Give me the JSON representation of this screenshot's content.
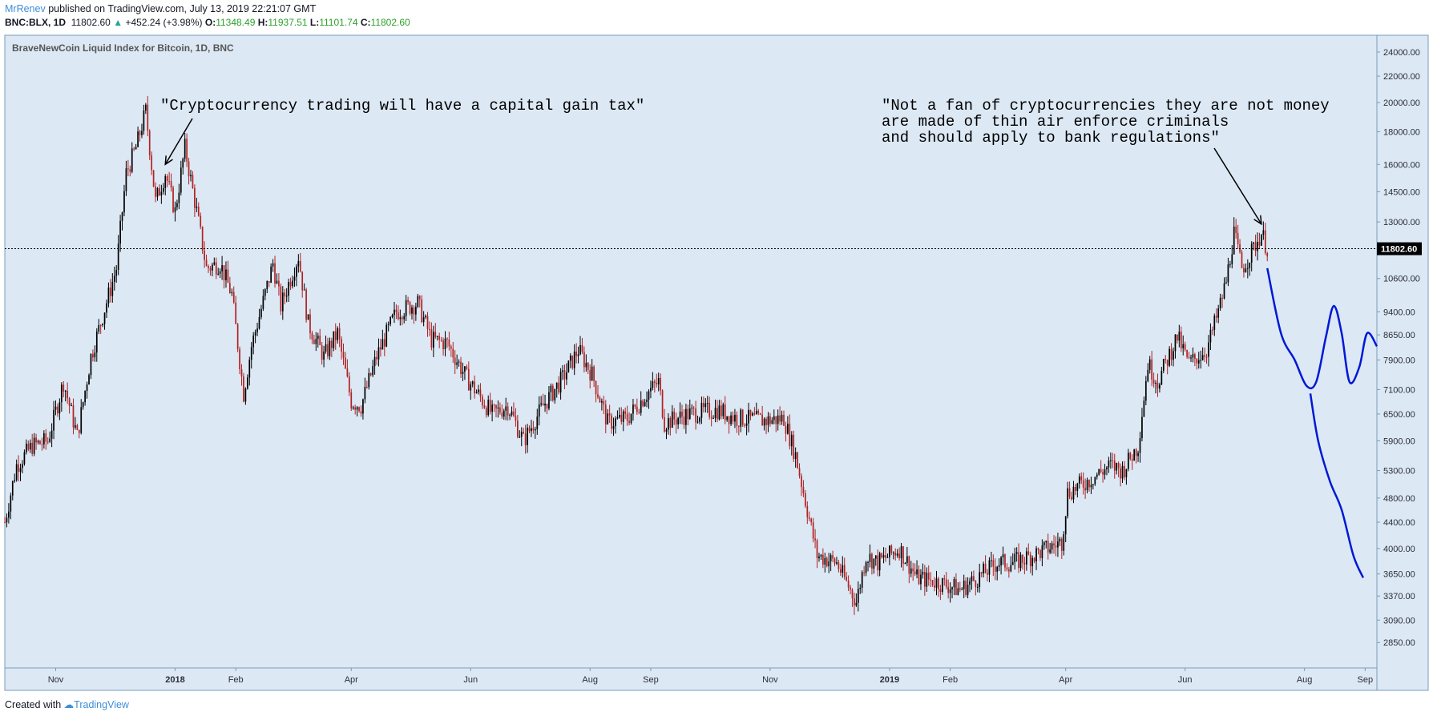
{
  "header": {
    "author": "MrRenev",
    "published": "published on TradingView.com, July 13, 2019 22:21:07 GMT",
    "symbol": "BNC:BLX, 1D",
    "last": "11802.60",
    "change": "+452.24 (+3.98%)",
    "o_label": "O:",
    "o_value": "11348.49",
    "h_label": "H:",
    "h_value": "11937.51",
    "l_label": "L:",
    "l_value": "11101.74",
    "c_label": "C:",
    "c_value": "11802.60"
  },
  "footer": {
    "created_with": "Created with",
    "brand": "TradingView"
  },
  "colors": {
    "background": "#dce8f4",
    "up_candle": "#000000",
    "down_candle": "#b22222",
    "projection": "#0018d6",
    "price_line": "#000000"
  },
  "chart_data": {
    "type": "candlestick",
    "title": "BraveNewCoin Liquid Index for Bitcoin, 1D, BNC",
    "y_scale": "log",
    "ylim": [
      2600,
      25500
    ],
    "y_ticks": [
      "24000.00",
      "22000.00",
      "20000.00",
      "18000.00",
      "16000.00",
      "14500.00",
      "13000.00",
      "11802.60",
      "10600.00",
      "9400.00",
      "8650.00",
      "7900.00",
      "7100.00",
      "6500.00",
      "5900.00",
      "5300.00",
      "4800.00",
      "4400.00",
      "4000.00",
      "3650.00",
      "3370.00",
      "3090.00",
      "2850.00"
    ],
    "last_price": "11802.60",
    "x_ticks": [
      "Nov",
      "2018",
      "Feb",
      "Apr",
      "Jun",
      "Aug",
      "Sep",
      "Nov",
      "2019",
      "Feb",
      "Apr",
      "Jun",
      "Aug",
      "Sep"
    ],
    "x_tick_dates": [
      "2017-11-01",
      "2018-01-01",
      "2018-02-01",
      "2018-04-01",
      "2018-06-01",
      "2018-08-01",
      "2018-09-01",
      "2018-11-01",
      "2019-01-01",
      "2019-02-01",
      "2019-04-01",
      "2019-06-01",
      "2019-08-01",
      "2019-09-01"
    ],
    "x_range": [
      "2017-10-06",
      "2019-09-07"
    ],
    "price_path": [
      [
        "2017-10-06",
        4400
      ],
      [
        "2017-10-12",
        5400
      ],
      [
        "2017-10-20",
        5800
      ],
      [
        "2017-10-28",
        5900
      ],
      [
        "2017-11-05",
        7300
      ],
      [
        "2017-11-12",
        6000
      ],
      [
        "2017-11-19",
        8000
      ],
      [
        "2017-11-26",
        9500
      ],
      [
        "2017-12-02",
        11000
      ],
      [
        "2017-12-07",
        15500
      ],
      [
        "2017-12-12",
        17000
      ],
      [
        "2017-12-17",
        19400
      ],
      [
        "2017-12-22",
        14000
      ],
      [
        "2017-12-27",
        15500
      ],
      [
        "2018-01-01",
        13500
      ],
      [
        "2018-01-06",
        17000
      ],
      [
        "2018-01-12",
        13500
      ],
      [
        "2018-01-17",
        11000
      ],
      [
        "2018-01-24",
        11200
      ],
      [
        "2018-01-30",
        10000
      ],
      [
        "2018-02-05",
        7000
      ],
      [
        "2018-02-09",
        8300
      ],
      [
        "2018-02-14",
        9500
      ],
      [
        "2018-02-20",
        11200
      ],
      [
        "2018-02-24",
        9600
      ],
      [
        "2018-03-05",
        11500
      ],
      [
        "2018-03-10",
        9000
      ],
      [
        "2018-03-18",
        8000
      ],
      [
        "2018-03-25",
        8700
      ],
      [
        "2018-04-01",
        6800
      ],
      [
        "2018-04-06",
        6700
      ],
      [
        "2018-04-14",
        8000
      ],
      [
        "2018-04-24",
        9400
      ],
      [
        "2018-05-05",
        9700
      ],
      [
        "2018-05-12",
        8500
      ],
      [
        "2018-05-20",
        8400
      ],
      [
        "2018-05-30",
        7400
      ],
      [
        "2018-06-12",
        6500
      ],
      [
        "2018-06-20",
        6700
      ],
      [
        "2018-06-28",
        5900
      ],
      [
        "2018-07-08",
        6700
      ],
      [
        "2018-07-18",
        7400
      ],
      [
        "2018-07-26",
        8200
      ],
      [
        "2018-08-02",
        7500
      ],
      [
        "2018-08-10",
        6300
      ],
      [
        "2018-08-20",
        6400
      ],
      [
        "2018-08-30",
        7000
      ],
      [
        "2018-09-05",
        7300
      ],
      [
        "2018-09-08",
        6300
      ],
      [
        "2018-09-20",
        6500
      ],
      [
        "2018-10-05",
        6600
      ],
      [
        "2018-10-15",
        6400
      ],
      [
        "2018-10-30",
        6350
      ],
      [
        "2018-11-08",
        6400
      ],
      [
        "2018-11-14",
        5600
      ],
      [
        "2018-11-20",
        4600
      ],
      [
        "2018-11-25",
        3900
      ],
      [
        "2018-12-05",
        3800
      ],
      [
        "2018-12-15",
        3300
      ],
      [
        "2018-12-20",
        3900
      ],
      [
        "2018-12-26",
        3800
      ],
      [
        "2019-01-06",
        4000
      ],
      [
        "2019-01-15",
        3600
      ],
      [
        "2019-01-25",
        3550
      ],
      [
        "2019-02-06",
        3450
      ],
      [
        "2019-02-15",
        3600
      ],
      [
        "2019-02-25",
        3800
      ],
      [
        "2019-03-05",
        3800
      ],
      [
        "2019-03-15",
        3900
      ],
      [
        "2019-03-30",
        4100
      ],
      [
        "2019-04-02",
        4900
      ],
      [
        "2019-04-12",
        5100
      ],
      [
        "2019-04-24",
        5400
      ],
      [
        "2019-04-30",
        5300
      ],
      [
        "2019-05-08",
        5800
      ],
      [
        "2019-05-13",
        7800
      ],
      [
        "2019-05-18",
        7300
      ],
      [
        "2019-05-28",
        8600
      ],
      [
        "2019-06-03",
        7800
      ],
      [
        "2019-06-12",
        8200
      ],
      [
        "2019-06-18",
        9400
      ],
      [
        "2019-06-22",
        10500
      ],
      [
        "2019-06-26",
        12500
      ],
      [
        "2019-06-30",
        11000
      ],
      [
        "2019-07-04",
        11500
      ],
      [
        "2019-07-10",
        12500
      ],
      [
        "2019-07-13",
        11802
      ]
    ],
    "projection_upper": [
      [
        "2019-07-13",
        11000
      ],
      [
        "2019-07-20",
        8700
      ],
      [
        "2019-07-27",
        7900
      ],
      [
        "2019-08-02",
        7200
      ],
      [
        "2019-08-07",
        7300
      ],
      [
        "2019-08-12",
        8600
      ],
      [
        "2019-08-16",
        9600
      ],
      [
        "2019-08-20",
        8700
      ],
      [
        "2019-08-24",
        7300
      ],
      [
        "2019-08-29",
        7700
      ],
      [
        "2019-09-02",
        8700
      ],
      [
        "2019-09-07",
        8300
      ]
    ],
    "projection_lower": [
      [
        "2019-08-04",
        7000
      ],
      [
        "2019-08-08",
        5900
      ],
      [
        "2019-08-14",
        5100
      ],
      [
        "2019-08-20",
        4600
      ],
      [
        "2019-08-26",
        3900
      ],
      [
        "2019-08-31",
        3600
      ]
    ],
    "annotations": [
      {
        "lines": [
          "\"Cryptocurrency trading will have a capital gain tax\""
        ],
        "arrow_to": [
          "2017-12-27",
          16000
        ]
      },
      {
        "lines": [
          "\"Not a fan of cryptocurrencies they are not money",
          "are made of thin air enforce criminals",
          "and should apply to bank regulations\""
        ],
        "arrow_to": [
          "2019-07-10",
          12900
        ]
      }
    ]
  }
}
